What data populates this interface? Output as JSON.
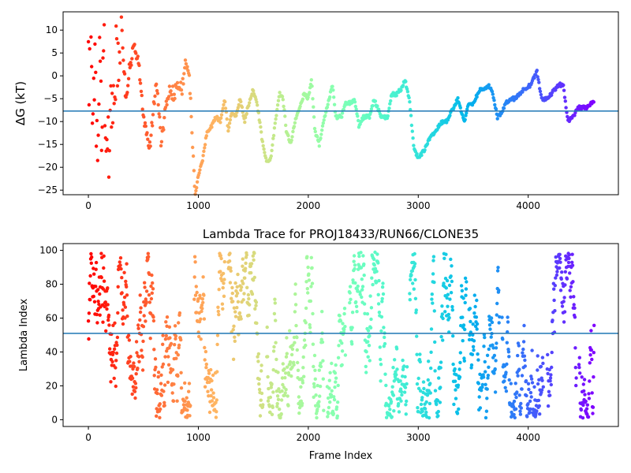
{
  "chart_data": [
    {
      "type": "scatter",
      "title": "",
      "xlabel": "",
      "ylabel": "ΔG (kT)",
      "xlim": [
        -230,
        4820
      ],
      "ylim": [
        -26,
        14
      ],
      "x_ticks": [
        0,
        1000,
        2000,
        3000,
        4000
      ],
      "y_ticks": [
        -25,
        -20,
        -15,
        -10,
        -5,
        0,
        5,
        10
      ],
      "hline": -7.7,
      "colormap": "rainbow (red → violet with frame index)",
      "n_frames": 4600,
      "trace": [
        [
          0,
          0
        ],
        [
          20,
          8
        ],
        [
          40,
          -16
        ],
        [
          60,
          6
        ],
        [
          80,
          -20
        ],
        [
          100,
          3
        ],
        [
          120,
          -8
        ],
        [
          140,
          9
        ],
        [
          160,
          -23
        ],
        [
          190,
          -15
        ],
        [
          220,
          -3
        ],
        [
          260,
          4
        ],
        [
          300,
          12
        ],
        [
          340,
          -5
        ],
        [
          380,
          3
        ],
        [
          420,
          6
        ],
        [
          460,
          2
        ],
        [
          500,
          -8
        ],
        [
          520,
          -12
        ],
        [
          560,
          -15
        ],
        [
          600,
          -5
        ],
        [
          620,
          -1
        ],
        [
          660,
          -14
        ],
        [
          700,
          -8
        ],
        [
          740,
          -3
        ],
        [
          780,
          -4
        ],
        [
          820,
          -1
        ],
        [
          850,
          -3
        ],
        [
          880,
          2
        ],
        [
          910,
          2
        ],
        [
          940,
          -10
        ],
        [
          970,
          -26
        ],
        [
          1000,
          -22
        ],
        [
          1040,
          -18
        ],
        [
          1080,
          -12
        ],
        [
          1120,
          -11
        ],
        [
          1160,
          -9
        ],
        [
          1200,
          -10
        ],
        [
          1240,
          -5
        ],
        [
          1270,
          -12
        ],
        [
          1300,
          -8
        ],
        [
          1340,
          -9
        ],
        [
          1380,
          -5
        ],
        [
          1420,
          -10
        ],
        [
          1460,
          -6
        ],
        [
          1500,
          -3
        ],
        [
          1540,
          -7
        ],
        [
          1580,
          -14
        ],
        [
          1620,
          -19
        ],
        [
          1660,
          -18
        ],
        [
          1700,
          -10
        ],
        [
          1740,
          -4
        ],
        [
          1770,
          -5
        ],
        [
          1800,
          -12
        ],
        [
          1840,
          -15
        ],
        [
          1880,
          -10
        ],
        [
          1920,
          -7
        ],
        [
          1960,
          -4
        ],
        [
          2000,
          -5
        ],
        [
          2030,
          -1
        ],
        [
          2060,
          -12
        ],
        [
          2100,
          -15
        ],
        [
          2140,
          -10
        ],
        [
          2180,
          -6
        ],
        [
          2220,
          -2
        ],
        [
          2250,
          -9
        ],
        [
          2300,
          -9
        ],
        [
          2340,
          -6
        ],
        [
          2380,
          -6
        ],
        [
          2420,
          -5
        ],
        [
          2460,
          -11
        ],
        [
          2500,
          -9
        ],
        [
          2560,
          -9
        ],
        [
          2600,
          -5
        ],
        [
          2660,
          -9
        ],
        [
          2720,
          -9
        ],
        [
          2760,
          -4
        ],
        [
          2800,
          -4
        ],
        [
          2840,
          -3
        ],
        [
          2880,
          -1
        ],
        [
          2920,
          -5
        ],
        [
          2960,
          -16
        ],
        [
          3000,
          -18
        ],
        [
          3060,
          -16
        ],
        [
          3100,
          -14
        ],
        [
          3160,
          -12
        ],
        [
          3220,
          -10
        ],
        [
          3260,
          -10
        ],
        [
          3300,
          -8
        ],
        [
          3360,
          -5
        ],
        [
          3420,
          -10
        ],
        [
          3460,
          -6
        ],
        [
          3500,
          -6
        ],
        [
          3560,
          -3
        ],
        [
          3600,
          -3
        ],
        [
          3640,
          -2
        ],
        [
          3680,
          -4
        ],
        [
          3720,
          -9
        ],
        [
          3760,
          -8
        ],
        [
          3800,
          -6
        ],
        [
          3840,
          -5
        ],
        [
          3880,
          -5
        ],
        [
          3920,
          -4
        ],
        [
          3960,
          -3
        ],
        [
          4020,
          -2
        ],
        [
          4080,
          1
        ],
        [
          4120,
          -5
        ],
        [
          4180,
          -5
        ],
        [
          4240,
          -3
        ],
        [
          4280,
          -2
        ],
        [
          4320,
          -2
        ],
        [
          4360,
          -10
        ],
        [
          4400,
          -9
        ],
        [
          4460,
          -7
        ],
        [
          4520,
          -7
        ],
        [
          4580,
          -6
        ]
      ]
    },
    {
      "type": "scatter",
      "title": "Lambda Trace for PROJ18433/RUN66/CLONE35",
      "xlabel": "Frame Index",
      "ylabel": "Lambda Index",
      "xlim": [
        -230,
        4820
      ],
      "ylim": [
        -4,
        104
      ],
      "x_ticks": [
        0,
        1000,
        2000,
        3000,
        4000
      ],
      "y_ticks": [
        0,
        20,
        40,
        60,
        80,
        100
      ],
      "hline": 51,
      "colormap": "rainbow (red → violet with frame index)",
      "n_frames": 4600,
      "lambda_range": [
        1,
        99
      ],
      "note_on_points": "each frame has one lambda value in 1–99, distributed across the full range; gaps near frames ~950, 1250, 1600, 2150, 2350, 2900, 3450, 3750, 4150, 4450"
    }
  ]
}
